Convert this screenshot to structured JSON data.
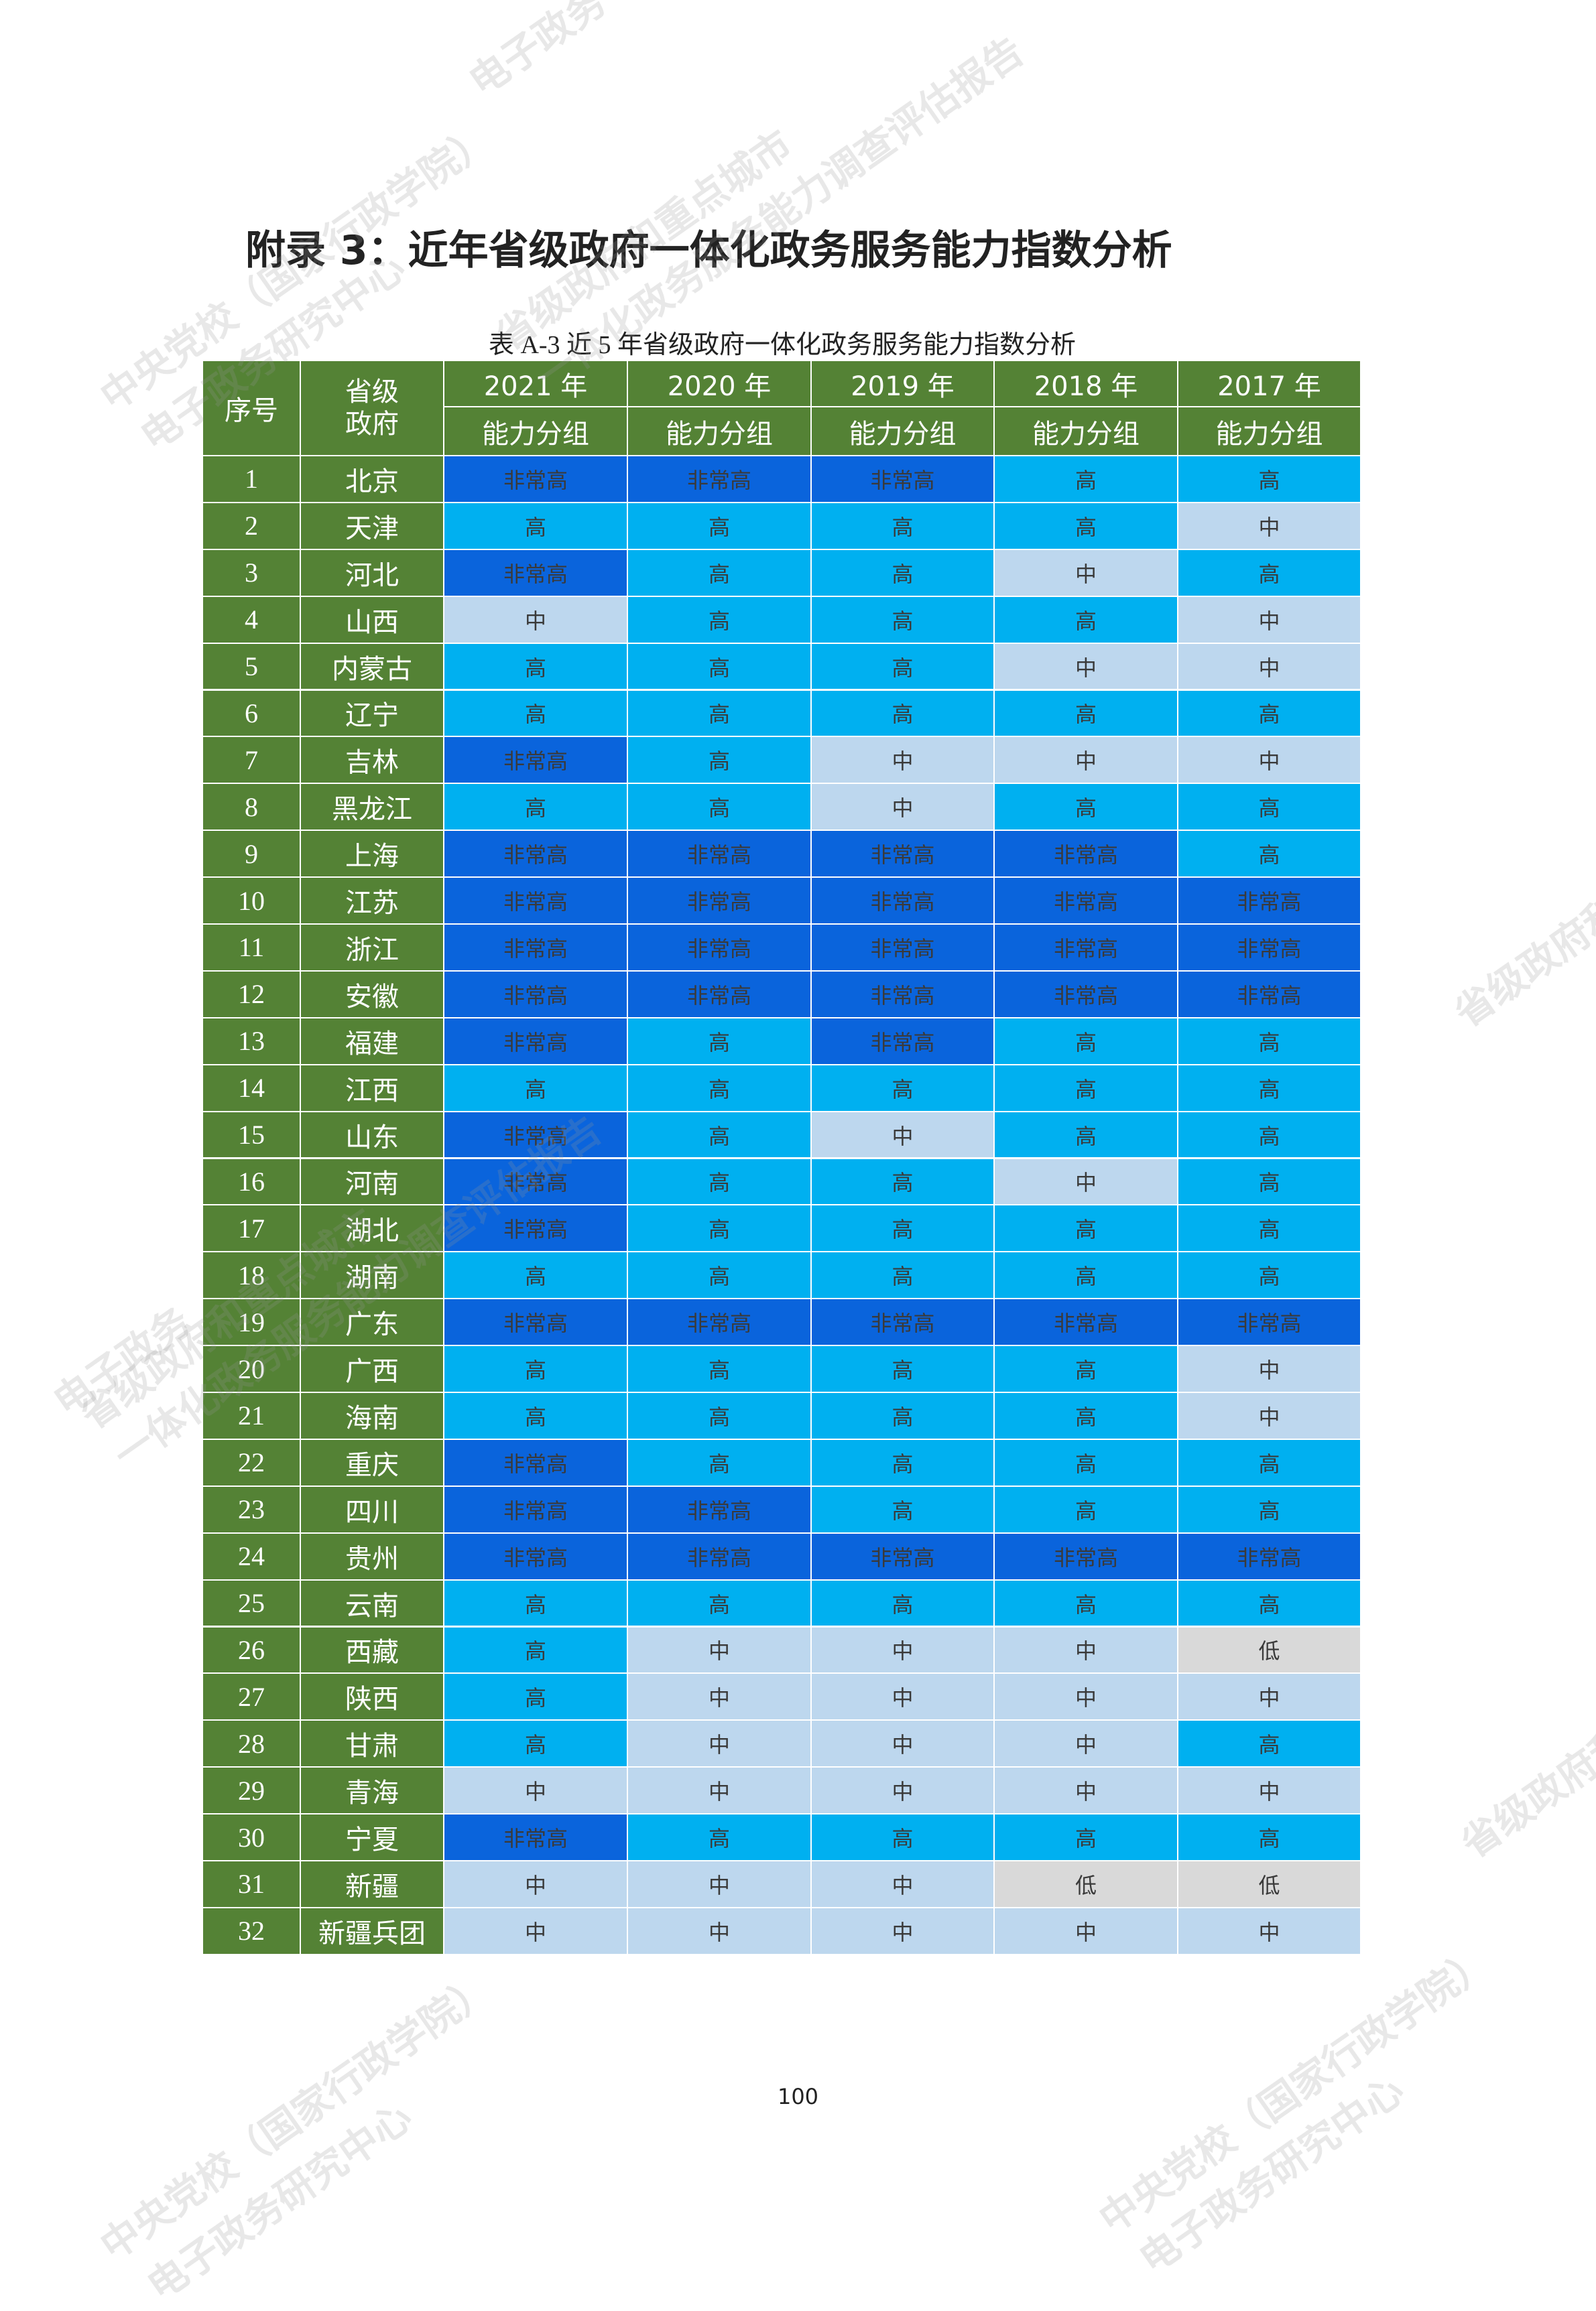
{
  "header": {
    "title": "附录 3：近年省级政府一体化政务服务能力指数分析"
  },
  "table": {
    "caption": "表 A-3  近 5 年省级政府一体化政务服务能力指数分析",
    "columns": [
      "序号",
      "省级政府",
      "2021 年",
      "2020 年",
      "2019 年",
      "2018 年",
      "2017 年"
    ],
    "subheader": [
      "能力分组",
      "能力分组",
      "能力分组",
      "能力分组",
      "能力分组"
    ],
    "header_color": "#548235",
    "cell_colors": {
      "非常高": "#0a64dc",
      "高": "#00b0f0",
      "中": "#bdd7ee",
      "低": "#d9d9d9"
    },
    "rows": [
      [
        1,
        "北京",
        "非常高",
        "非常高",
        "非常高",
        "高",
        "高"
      ],
      [
        2,
        "天津",
        "高",
        "高",
        "高",
        "高",
        "中"
      ],
      [
        3,
        "河北",
        "非常高",
        "高",
        "高",
        "中",
        "高"
      ],
      [
        4,
        "山西",
        "中",
        "高",
        "高",
        "高",
        "中"
      ],
      [
        5,
        "内蒙古",
        "高",
        "高",
        "高",
        "中",
        "中"
      ],
      [
        6,
        "辽宁",
        "高",
        "高",
        "高",
        "高",
        "高"
      ],
      [
        7,
        "吉林",
        "非常高",
        "高",
        "中",
        "中",
        "中"
      ],
      [
        8,
        "黑龙江",
        "高",
        "高",
        "中",
        "高",
        "高"
      ],
      [
        9,
        "上海",
        "非常高",
        "非常高",
        "非常高",
        "非常高",
        "高"
      ],
      [
        10,
        "江苏",
        "非常高",
        "非常高",
        "非常高",
        "非常高",
        "非常高"
      ],
      [
        11,
        "浙江",
        "非常高",
        "非常高",
        "非常高",
        "非常高",
        "非常高"
      ],
      [
        12,
        "安徽",
        "非常高",
        "非常高",
        "非常高",
        "非常高",
        "非常高"
      ],
      [
        13,
        "福建",
        "非常高",
        "高",
        "非常高",
        "高",
        "高"
      ],
      [
        14,
        "江西",
        "高",
        "高",
        "高",
        "高",
        "高"
      ],
      [
        15,
        "山东",
        "非常高",
        "高",
        "中",
        "高",
        "高"
      ],
      [
        16,
        "河南",
        "非常高",
        "高",
        "高",
        "中",
        "高"
      ],
      [
        17,
        "湖北",
        "非常高",
        "高",
        "高",
        "高",
        "高"
      ],
      [
        18,
        "湖南",
        "高",
        "高",
        "高",
        "高",
        "高"
      ],
      [
        19,
        "广东",
        "非常高",
        "非常高",
        "非常高",
        "非常高",
        "非常高"
      ],
      [
        20,
        "广西",
        "高",
        "高",
        "高",
        "高",
        "中"
      ],
      [
        21,
        "海南",
        "高",
        "高",
        "高",
        "高",
        "中"
      ],
      [
        22,
        "重庆",
        "非常高",
        "高",
        "高",
        "高",
        "高"
      ],
      [
        23,
        "四川",
        "非常高",
        "非常高",
        "高",
        "高",
        "高"
      ],
      [
        24,
        "贵州",
        "非常高",
        "非常高",
        "非常高",
        "非常高",
        "非常高"
      ],
      [
        25,
        "云南",
        "高",
        "高",
        "高",
        "高",
        "高"
      ],
      [
        26,
        "西藏",
        "高",
        "中",
        "中",
        "中",
        "低"
      ],
      [
        27,
        "陕西",
        "高",
        "中",
        "中",
        "中",
        "中"
      ],
      [
        28,
        "甘肃",
        "高",
        "中",
        "中",
        "中",
        "高"
      ],
      [
        29,
        "青海",
        "中",
        "中",
        "中",
        "中",
        "中"
      ],
      [
        30,
        "宁夏",
        "非常高",
        "高",
        "高",
        "高",
        "高"
      ],
      [
        31,
        "新疆",
        "中",
        "中",
        "中",
        "低",
        "低"
      ],
      [
        32,
        "新疆兵团",
        "中",
        "中",
        "中",
        "中",
        "中"
      ]
    ]
  },
  "watermarks": [
    "中央党校（国家行政学院）",
    "电子政务研究中心",
    "省级政府和重点城市",
    "一体化政务服务能力调查评估报告",
    "电子政务"
  ],
  "footer": {
    "page_number": "100"
  }
}
